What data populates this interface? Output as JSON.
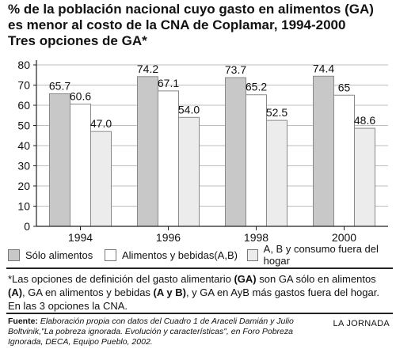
{
  "title_lines": [
    "% de la población nacional cuyo gasto en alimentos (GA)",
    "es menor al costo de la CNA de Coplamar, 1994-2000",
    "Tres opciones de GA*"
  ],
  "chart_data": {
    "type": "bar",
    "categories": [
      "1994",
      "1996",
      "1998",
      "2000"
    ],
    "series": [
      {
        "name": "Sólo alimentos",
        "color": "#c8c8c8",
        "values": [
          65.7,
          74.2,
          73.7,
          74.4
        ],
        "labels": [
          "65.7",
          "74.2",
          "73.7",
          "74.4"
        ]
      },
      {
        "name": "Alimentos y bebidas(A,B)",
        "color": "#ffffff",
        "values": [
          60.6,
          67.1,
          65.2,
          65.0
        ],
        "labels": [
          "60.6",
          "67.1",
          "65.2",
          "65"
        ]
      },
      {
        "name": "A, B y consumo fuera del hogar",
        "color": "#ececec",
        "values": [
          47.0,
          54.0,
          52.5,
          48.6
        ],
        "labels": [
          "47.0",
          "54.0",
          "52.5",
          "48.6"
        ]
      }
    ],
    "ylim": [
      0,
      80
    ],
    "yticks": [
      "0",
      "10",
      "20",
      "30",
      "40",
      "50",
      "60",
      "70",
      "80"
    ],
    "grid": true,
    "legend_position": "bottom"
  },
  "note": {
    "text_1": "*Las opciones de definición del gasto alimentario ",
    "bold_1": "(GA)",
    "text_2": " son GA sólo en alimentos ",
    "bold_2": "(A)",
    "text_3": ", GA en alimentos y bebidas ",
    "bold_3": "(A y B)",
    "text_4": ", y GA en AyB más gastos fuera del hogar. En las 3 opciones la CNA."
  },
  "footer": {
    "label": "Fuente:",
    "text": " Elaboración propia con datos del Cuadro 1 de Araceli Damián y Julio Boltvinik,\"La pobreza ignorada. Evolución y características\", en Foro Pobreza Ignorada, DECA, Equipo Pueblo, 2002.",
    "credit": "LA JORNADA"
  }
}
